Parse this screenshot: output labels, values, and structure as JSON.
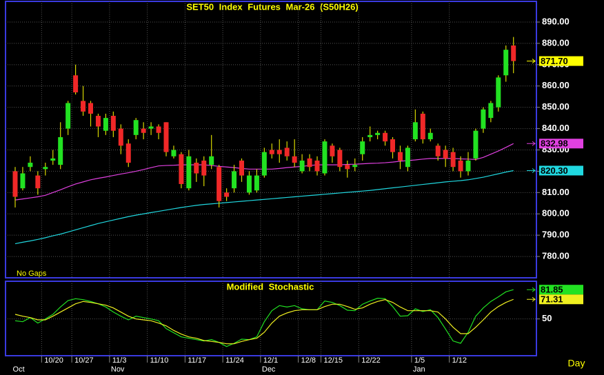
{
  "chart_data": [
    {
      "type": "candlestick",
      "title": "SET50 Index Futures Mar-26 (S50H26)",
      "note": "No Gaps",
      "x_label": "Day",
      "categories": [
        null,
        null,
        null,
        null,
        "10/20",
        null,
        null,
        null,
        "10/27",
        null,
        null,
        null,
        null,
        "11/3",
        null,
        null,
        null,
        null,
        "11/10",
        null,
        null,
        null,
        null,
        "11/17",
        null,
        null,
        null,
        null,
        "11/24",
        null,
        null,
        null,
        null,
        "12/1",
        null,
        null,
        null,
        null,
        "12/8",
        null,
        null,
        "12/15",
        null,
        null,
        null,
        null,
        "12/22",
        null,
        null,
        null,
        null,
        null,
        null,
        "1/5",
        null,
        null,
        null,
        null,
        "1/12",
        null,
        null,
        null,
        null,
        null,
        null,
        null,
        null
      ],
      "months": [
        "Oct",
        null,
        null,
        null,
        null,
        null,
        null,
        null,
        null,
        null,
        null,
        null,
        null,
        "Nov",
        null,
        null,
        null,
        null,
        null,
        null,
        null,
        null,
        null,
        null,
        null,
        null,
        null,
        null,
        null,
        null,
        null,
        null,
        null,
        "Dec",
        null,
        null,
        null,
        null,
        null,
        null,
        null,
        null,
        null,
        null,
        null,
        null,
        null,
        null,
        null,
        null,
        null,
        null,
        null,
        "Jan",
        null,
        null,
        null,
        null,
        null,
        null,
        null,
        null,
        null,
        null,
        null,
        null,
        null
      ],
      "candles": {
        "open": [
          820,
          812,
          822,
          818,
          821,
          825,
          823,
          840,
          865,
          853,
          852,
          846,
          839,
          846,
          840,
          833,
          837,
          840,
          840,
          841,
          843,
          827,
          828,
          812,
          824,
          825,
          823,
          822,
          810,
          812,
          825,
          810,
          811,
          818,
          830,
          830,
          831,
          827,
          820,
          826,
          825,
          819,
          832,
          830,
          823,
          822,
          828,
          836,
          837,
          838,
          835,
          829,
          822,
          835,
          847,
          835,
          832,
          830,
          829,
          825,
          820,
          826,
          840,
          845,
          850,
          865,
          879
        ],
        "high": [
          822,
          822,
          827,
          820,
          824,
          830,
          843,
          853,
          870,
          860,
          853,
          847,
          847,
          848,
          842,
          835,
          845,
          843,
          843,
          842,
          843,
          832,
          829,
          830,
          826,
          827,
          837,
          823,
          812,
          823,
          826,
          820,
          821,
          831,
          833,
          835,
          834,
          835,
          828,
          828,
          827,
          835,
          833,
          831,
          825,
          826,
          836,
          841,
          839,
          839,
          836,
          832,
          832,
          849,
          848,
          840,
          833,
          832,
          831,
          827,
          829,
          840,
          850,
          853,
          865,
          879,
          883
        ],
        "low": [
          803,
          811,
          820,
          809,
          818,
          823,
          821,
          837,
          856,
          846,
          841,
          836,
          837,
          836,
          828,
          822,
          835,
          835,
          837,
          835,
          827,
          826,
          812,
          811,
          815,
          813,
          821,
          803,
          806,
          810,
          815,
          809,
          810,
          817,
          826,
          824,
          825,
          822,
          819,
          820,
          818,
          818,
          824,
          820,
          817,
          820,
          825,
          834,
          835,
          832,
          826,
          821,
          820,
          834,
          833,
          834,
          825,
          822,
          820,
          817,
          818,
          825,
          838,
          843,
          848,
          862,
          866
        ],
        "close": [
          808,
          819,
          824,
          812,
          822,
          826,
          836,
          852,
          857,
          848,
          847,
          841,
          845,
          839,
          832,
          824,
          844,
          838,
          841,
          838,
          829,
          830,
          814,
          827,
          819,
          818,
          827,
          806,
          808,
          820,
          818,
          818,
          818,
          829,
          828,
          828,
          827,
          824,
          825,
          822,
          820,
          834,
          827,
          822,
          821,
          823,
          834,
          837,
          838,
          834,
          829,
          825,
          831,
          843,
          835,
          838,
          827,
          826,
          822,
          820,
          825,
          839,
          849,
          852,
          864,
          877,
          871.7
        ],
        "close_label": "871.70"
      },
      "up_color": "#22e222",
      "down_color": "#f02828",
      "wick_color": "#d8d800",
      "tag_color": "#ffff00",
      "series": [
        {
          "color": "#e040e0",
          "last_label": "832.98",
          "values": [
            806.5,
            807,
            807.5,
            808,
            808.7,
            810,
            811.3,
            812.7,
            814,
            815,
            816,
            816.7,
            817.3,
            818,
            818.7,
            819.3,
            820,
            820.8,
            821.7,
            822.5,
            822.7,
            822.8,
            823,
            823,
            823,
            823,
            822.7,
            822.3,
            822,
            821.7,
            821.3,
            821,
            821,
            821,
            821,
            821.3,
            821.7,
            822,
            822.3,
            822.7,
            823,
            823,
            823,
            823,
            823.2,
            823.3,
            823.5,
            823.7,
            823.8,
            824,
            824.3,
            824.7,
            825,
            825.3,
            825.7,
            826,
            826,
            826,
            826,
            825.8,
            825.7,
            825.5,
            826.5,
            828,
            829.5,
            831.2,
            832.98
          ]
        },
        {
          "color": "#20d8e0",
          "last_label": "820.30",
          "values": [
            786,
            786.7,
            787.3,
            788,
            788.8,
            789.7,
            790.5,
            791.5,
            792.5,
            793.5,
            794.5,
            795.5,
            796.3,
            797.1,
            797.9,
            798.7,
            799.4,
            800,
            800.6,
            801.2,
            801.8,
            802.4,
            803,
            803.5,
            804,
            804.4,
            804.7,
            805,
            805.3,
            805.6,
            805.9,
            806.2,
            806.5,
            806.8,
            807.1,
            807.4,
            807.7,
            808,
            808.3,
            808.6,
            808.9,
            809.2,
            809.5,
            809.8,
            810.1,
            810.4,
            810.7,
            811,
            811.4,
            811.8,
            812.2,
            812.6,
            813,
            813.4,
            813.8,
            814.2,
            814.6,
            815,
            815.3,
            815.6,
            816,
            816.6,
            817.2,
            818,
            818.8,
            819.6,
            820.3
          ]
        }
      ],
      "ylim": [
        770,
        899.7
      ],
      "yticks": [
        {
          "value": 780,
          "label": "780.00"
        },
        {
          "value": 790,
          "label": "790.00"
        },
        {
          "value": 800,
          "label": "800.00"
        },
        {
          "value": 810,
          "label": "810.00"
        },
        {
          "value": 820,
          "label": "820.00"
        },
        {
          "value": 830,
          "label": "830.00"
        },
        {
          "value": 840,
          "label": "840.00"
        },
        {
          "value": 850,
          "label": "850.00"
        },
        {
          "value": 860,
          "label": "860.00"
        },
        {
          "value": 870,
          "label": "870.00"
        },
        {
          "value": 880,
          "label": "880.00"
        },
        {
          "value": 890,
          "label": "890.00"
        }
      ],
      "grid": true
    },
    {
      "type": "line",
      "title": "Modified Stochastic",
      "series": [
        {
          "color": "#22e222",
          "last_label": "81.85",
          "values": [
            48,
            47,
            51.5,
            45.5,
            50,
            55,
            63,
            70,
            72,
            71,
            69,
            66.5,
            63,
            57.5,
            53,
            49,
            53,
            51.5,
            50,
            48,
            39.5,
            35,
            30.5,
            29,
            27.5,
            26,
            27.5,
            24.5,
            20,
            23.5,
            28,
            27.5,
            30.5,
            47,
            59,
            64.5,
            63,
            64.5,
            61,
            60,
            60,
            69.5,
            68,
            64.5,
            59.5,
            59,
            66,
            69.5,
            72.5,
            72,
            63.5,
            53,
            53.5,
            61,
            58,
            60,
            51.5,
            39,
            26,
            23.5,
            35.5,
            53,
            62,
            69,
            74,
            79.5,
            81.85
          ]
        },
        {
          "color": "#f0f020",
          "last_label": "71.31",
          "values": [
            55,
            53,
            51.5,
            49,
            49,
            53,
            57.5,
            62,
            66.5,
            69,
            68,
            66.5,
            65,
            62,
            57.5,
            53,
            50,
            49,
            48,
            45.5,
            42.5,
            37.5,
            33.5,
            30.5,
            29,
            26.5,
            25.5,
            24.5,
            23,
            23,
            25.5,
            27.5,
            29,
            35.5,
            45.5,
            53,
            56.5,
            59,
            60,
            60,
            60,
            63.5,
            66,
            66,
            63.5,
            60.5,
            62,
            66,
            69,
            71,
            68,
            63,
            59,
            59,
            59,
            59,
            57.5,
            50,
            41,
            34,
            34,
            41,
            49,
            57.5,
            63.5,
            68,
            71.31
          ]
        }
      ],
      "ylim": [
        10,
        91
      ],
      "yticks": [
        50
      ],
      "grid": true
    }
  ]
}
